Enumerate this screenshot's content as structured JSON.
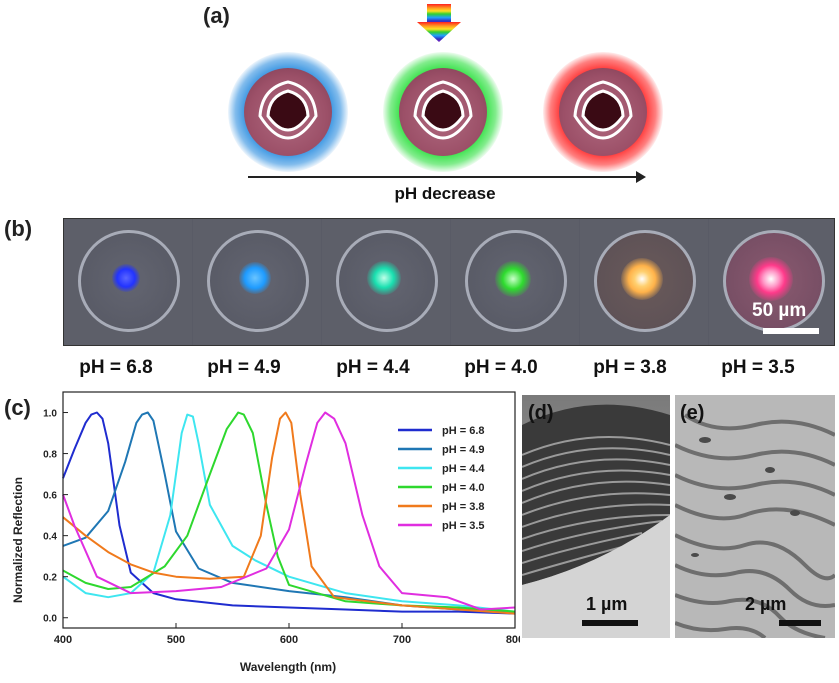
{
  "panel_labels": {
    "a": "(a)",
    "b": "(b)",
    "c": "(c)",
    "d": "(d)",
    "e": "(e)"
  },
  "panel_a": {
    "arrow_label": "pH decrease",
    "spheres": [
      {
        "glow": "#2e8fe0",
        "name": "blue"
      },
      {
        "glow": "#2ee040",
        "name": "green"
      },
      {
        "glow": "#ff2a2a",
        "name": "red"
      }
    ]
  },
  "panel_b": {
    "scale_bar": "50 µm",
    "cells": [
      {
        "ph": "pH = 6.8",
        "spot": "#2233ff"
      },
      {
        "ph": "pH = 4.9",
        "spot": "#1e9bff"
      },
      {
        "ph": "pH = 4.4",
        "spot": "#19e0b0"
      },
      {
        "ph": "pH = 4.0",
        "spot": "#2edc2e"
      },
      {
        "ph": "pH = 3.8",
        "spot": "#ffb24a"
      },
      {
        "ph": "pH = 3.5",
        "spot": "#ff3a8a"
      }
    ]
  },
  "panel_d": {
    "scale_bar": "1 µm"
  },
  "panel_e": {
    "scale_bar": "2 µm"
  },
  "chart_data": {
    "type": "line",
    "xlabel": "Wavelength (nm)",
    "ylabel": "Normalized Reflection",
    "xlim": [
      400,
      800
    ],
    "ylim": [
      -0.05,
      1.1
    ],
    "xticks": [
      400,
      500,
      600,
      700,
      800
    ],
    "yticks": [
      0.0,
      0.2,
      0.4,
      0.6,
      0.8,
      1.0
    ],
    "legend_position": "top-right",
    "series": [
      {
        "name": "pH = 6.8",
        "color": "#1f2ccf",
        "x": [
          400,
          410,
          420,
          425,
          430,
          435,
          440,
          450,
          460,
          480,
          500,
          550,
          600,
          650,
          700,
          750,
          800
        ],
        "y": [
          0.68,
          0.82,
          0.95,
          0.99,
          1.0,
          0.97,
          0.85,
          0.45,
          0.22,
          0.12,
          0.09,
          0.06,
          0.05,
          0.04,
          0.03,
          0.03,
          0.02
        ]
      },
      {
        "name": "pH = 4.9",
        "color": "#1f77b4",
        "x": [
          400,
          420,
          440,
          455,
          465,
          470,
          475,
          480,
          490,
          500,
          520,
          550,
          600,
          650,
          700,
          750,
          800
        ],
        "y": [
          0.35,
          0.39,
          0.52,
          0.76,
          0.95,
          0.99,
          1.0,
          0.96,
          0.7,
          0.42,
          0.24,
          0.17,
          0.13,
          0.1,
          0.06,
          0.04,
          0.03
        ]
      },
      {
        "name": "pH = 4.4",
        "color": "#3ee6f0",
        "x": [
          400,
          420,
          440,
          460,
          480,
          495,
          505,
          510,
          515,
          520,
          530,
          550,
          570,
          600,
          650,
          700,
          750,
          800
        ],
        "y": [
          0.2,
          0.12,
          0.1,
          0.12,
          0.22,
          0.5,
          0.9,
          0.99,
          0.98,
          0.85,
          0.55,
          0.35,
          0.28,
          0.2,
          0.12,
          0.08,
          0.06,
          0.03
        ]
      },
      {
        "name": "pH = 4.0",
        "color": "#2ed82e",
        "x": [
          400,
          420,
          440,
          460,
          490,
          510,
          530,
          545,
          555,
          560,
          568,
          580,
          590,
          600,
          650,
          700,
          750,
          800
        ],
        "y": [
          0.23,
          0.17,
          0.14,
          0.15,
          0.25,
          0.4,
          0.7,
          0.92,
          1.0,
          0.99,
          0.9,
          0.55,
          0.3,
          0.16,
          0.08,
          0.06,
          0.05,
          0.03
        ]
      },
      {
        "name": "pH = 3.8",
        "color": "#f07a1c",
        "x": [
          400,
          420,
          440,
          460,
          480,
          500,
          530,
          560,
          575,
          585,
          592,
          597,
          602,
          610,
          620,
          640,
          700,
          750,
          800
        ],
        "y": [
          0.49,
          0.4,
          0.32,
          0.26,
          0.22,
          0.2,
          0.19,
          0.2,
          0.4,
          0.78,
          0.97,
          1.0,
          0.95,
          0.6,
          0.25,
          0.1,
          0.06,
          0.04,
          0.02
        ]
      },
      {
        "name": "pH = 3.5",
        "color": "#e02ee0",
        "x": [
          400,
          410,
          430,
          460,
          500,
          540,
          580,
          600,
          615,
          625,
          632,
          640,
          650,
          665,
          680,
          700,
          740,
          770,
          800
        ],
        "y": [
          0.6,
          0.45,
          0.2,
          0.12,
          0.13,
          0.15,
          0.24,
          0.43,
          0.75,
          0.95,
          1.0,
          0.97,
          0.85,
          0.5,
          0.25,
          0.12,
          0.1,
          0.04,
          0.05
        ]
      }
    ]
  }
}
